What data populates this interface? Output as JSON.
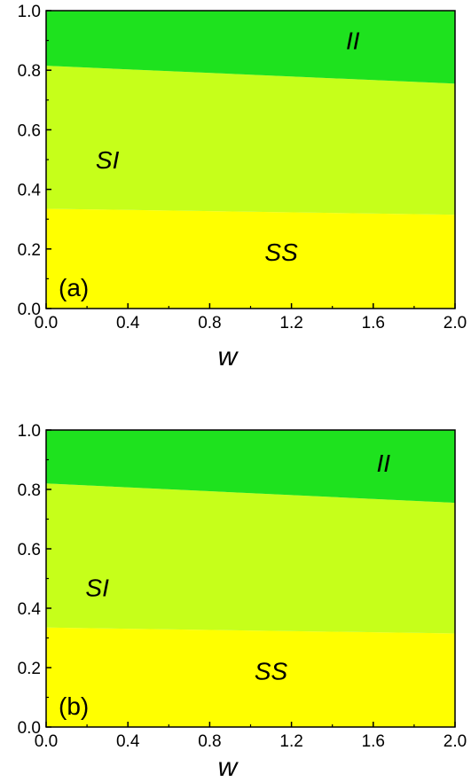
{
  "chart_data": [
    {
      "type": "area",
      "panel_label": "(a)",
      "xlabel": "w",
      "ylabel": "",
      "xlim": [
        0.0,
        2.0
      ],
      "ylim": [
        0.0,
        1.0
      ],
      "x_ticks": [
        "0.0",
        "0.4",
        "0.8",
        "1.2",
        "1.6",
        "2.0"
      ],
      "y_ticks": [
        "0.0",
        "0.2",
        "0.4",
        "0.6",
        "0.8",
        "1.0"
      ],
      "grid": false,
      "x": [
        0.0,
        2.0
      ],
      "boundaries": [
        {
          "between": [
            "SS",
            "SI"
          ],
          "y": [
            0.335,
            0.315
          ]
        },
        {
          "between": [
            "SI",
            "II"
          ],
          "y": [
            0.815,
            0.755
          ]
        }
      ],
      "regions": [
        {
          "name": "SS",
          "color": "#ffff00",
          "label_at": [
            1.15,
            0.16
          ]
        },
        {
          "name": "SI",
          "color": "#c6ff1a",
          "label_at": [
            0.3,
            0.47
          ]
        },
        {
          "name": "II",
          "color": "#1ee21e",
          "label_at": [
            1.5,
            0.87
          ]
        }
      ]
    },
    {
      "type": "area",
      "panel_label": "(b)",
      "xlabel": "w",
      "ylabel": "",
      "xlim": [
        0.0,
        2.0
      ],
      "ylim": [
        0.0,
        1.0
      ],
      "x_ticks": [
        "0.0",
        "0.4",
        "0.8",
        "1.2",
        "1.6",
        "2.0"
      ],
      "y_ticks": [
        "0.0",
        "0.2",
        "0.4",
        "0.6",
        "0.8",
        "1.0"
      ],
      "grid": false,
      "x": [
        0.0,
        2.0
      ],
      "boundaries": [
        {
          "between": [
            "SS",
            "SI"
          ],
          "y": [
            0.335,
            0.315
          ]
        },
        {
          "between": [
            "SI",
            "II"
          ],
          "y": [
            0.82,
            0.755
          ]
        }
      ],
      "regions": [
        {
          "name": "SS",
          "color": "#ffff00",
          "label_at": [
            1.1,
            0.16
          ]
        },
        {
          "name": "SI",
          "color": "#c6ff1a",
          "label_at": [
            0.25,
            0.44
          ]
        },
        {
          "name": "II",
          "color": "#1ee21e",
          "label_at": [
            1.65,
            0.86
          ]
        }
      ]
    }
  ]
}
